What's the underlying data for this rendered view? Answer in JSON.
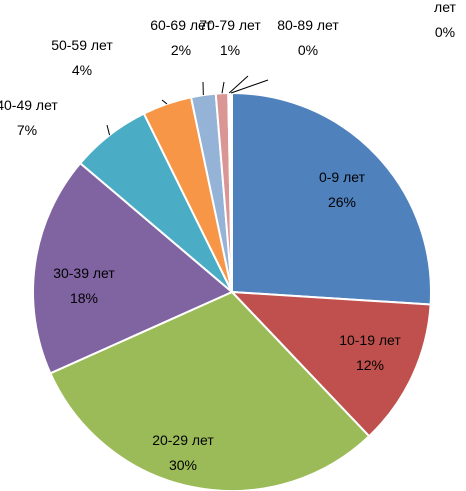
{
  "chart_data": {
    "type": "pie",
    "categories": [
      "0-9 лет",
      "10-19 лет",
      "20-29 лет",
      "30-39 лет",
      "40-49 лет",
      "50-59 лет",
      "60-69 лет",
      "70-79 лет",
      "80-89 лет",
      "лет"
    ],
    "values": [
      26.0,
      11.9,
      30.4,
      17.9,
      6.5,
      4.0,
      2.0,
      1.0,
      0.15,
      0.15
    ],
    "value_labels": [
      "26%",
      "12%",
      "30%",
      "18%",
      "7%",
      "4%",
      "2%",
      "1%",
      "0%",
      "0%"
    ],
    "colors": [
      "#4F81BD",
      "#C0504D",
      "#9BBB59",
      "#8064A2",
      "#4BACC6",
      "#F79646",
      "#95B3D7",
      "#D99694",
      "#4F81BD",
      "#C0504D"
    ],
    "title": "",
    "legend": "none",
    "label_placement": "inside for large slices, outside with leader lines for small slices"
  }
}
